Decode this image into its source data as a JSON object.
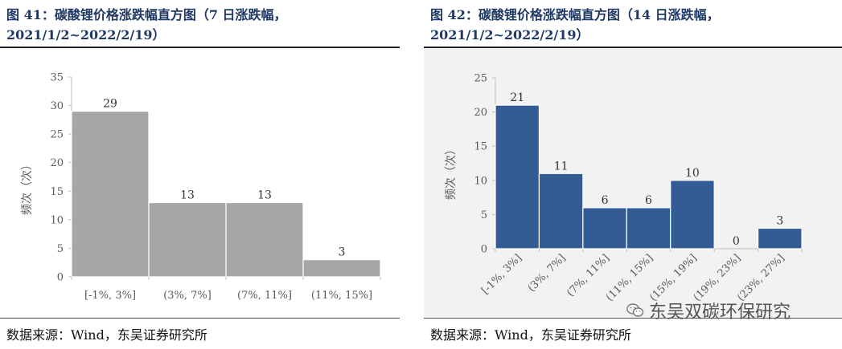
{
  "left": {
    "title_line1": "图 41：碳酸锂价格涨跌幅直方图（7 日涨跌幅，",
    "title_line2": "2021/1/2~2022/2/19）",
    "source": "数据来源：Wind，东吴证券研究所"
  },
  "right": {
    "title_line1": "图  42：碳酸锂价格涨跌幅直方图（14  日涨跌幅，",
    "title_line2": "2021/1/2~2022/2/19）",
    "source": "数据来源：Wind，东吴证券研究所",
    "watermark": "东吴双碳环保研究"
  },
  "chart_data": [
    {
      "type": "bar",
      "title": "碳酸锂价格涨跌幅直方图（7 日涨跌幅，2021/1/2~2022/2/19）",
      "categories": [
        "[-1%, 3%]",
        "(3%, 7%]",
        "(7%, 11%]",
        "(11%, 15%]"
      ],
      "values": [
        29,
        13,
        13,
        3
      ],
      "ylabel": "频次（次）",
      "ylim": [
        0,
        35
      ],
      "yticks": [
        0,
        5,
        10,
        15,
        20,
        25,
        30,
        35
      ],
      "color": "#a6a6a6",
      "grid": false
    },
    {
      "type": "bar",
      "title": "碳酸锂价格涨跌幅直方图（14 日涨跌幅，2021/1/2~2022/2/19）",
      "categories": [
        "[-1%, 3%]",
        "(3%, 7%]",
        "(7%, 11%]",
        "(11%, 15%]",
        "(15%, 19%]",
        "(19%, 23%]",
        "(23%, 27%]"
      ],
      "values": [
        21,
        11,
        6,
        6,
        10,
        0,
        3
      ],
      "ylabel": "频次（次）",
      "ylim": [
        0,
        25
      ],
      "yticks": [
        0,
        5,
        10,
        15,
        20,
        25
      ],
      "color": "#335c94",
      "grid": false
    }
  ]
}
